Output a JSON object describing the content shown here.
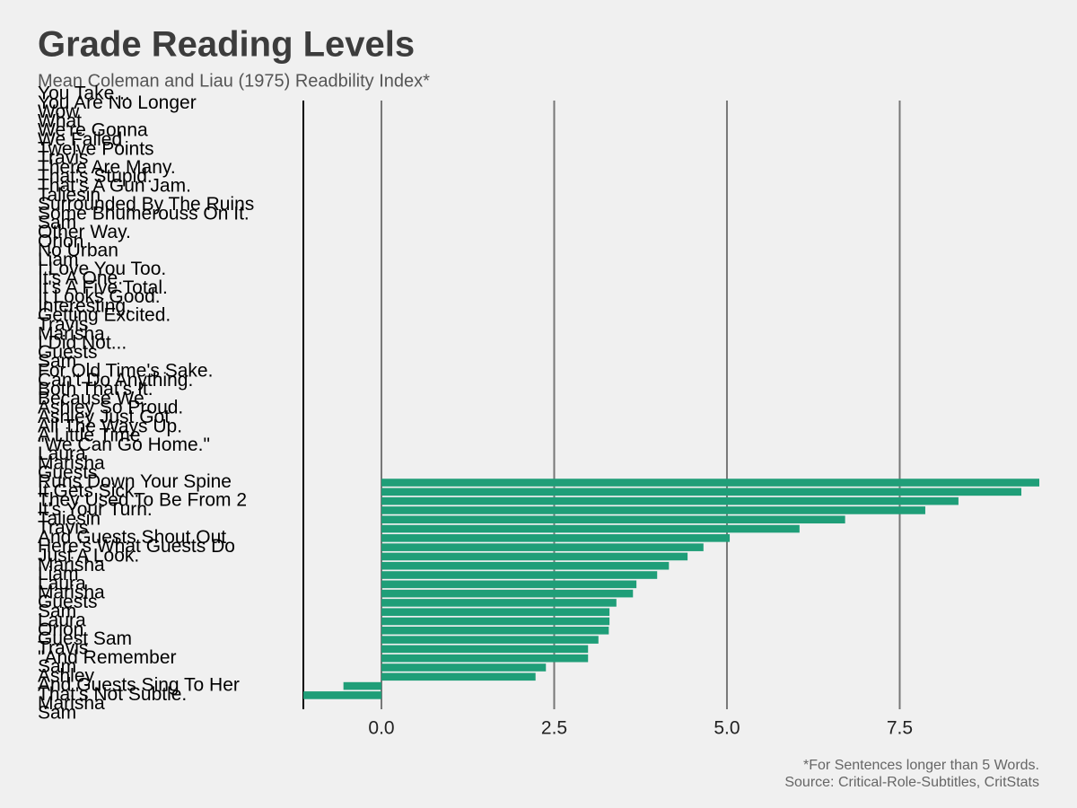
{
  "chart_data": {
    "type": "barh",
    "title": "Grade Reading Levels",
    "subtitle": "Mean Coleman and Liau (1975) Readbility Index*",
    "footnote": [
      "*For Sentences longer than 5 Words.",
      "Source: Critical-Role-Subtitles, CritStats"
    ],
    "color": "#1f9e78",
    "grid": true,
    "xlim": [
      -1.13,
      9.52
    ],
    "xticks": [
      {
        "value": 0,
        "label": "0.0"
      },
      2.5,
      {
        "value": 5,
        "label": "5.0"
      },
      7.5
    ],
    "categories": [
      "You Take...",
      "You Are No Longer",
      "Wow",
      "What",
      "We're Gonna",
      "We Failed",
      "Twelve Points",
      "Travis",
      "There Are Many.",
      "That's Stupid.",
      "That's A Gun Jam.",
      "Taliesin",
      "Surrounded By The Ruins",
      "Some Bhumerouss On It.",
      "Sam",
      "Other Way.",
      "Orion",
      "No Urban",
      "Liam",
      "I Love You Too.",
      "It's A One.",
      "It's A Five Total.",
      "It Looks Good.",
      "Interesting.",
      "Getting Excited.",
      "Travis",
      "Marisha",
      "I Did Not...",
      "Guests",
      "Sam",
      "For Old Time's Sake.",
      "Can't Do Anything.",
      "Both That's It.",
      "Because We",
      "Ashley So Proud.",
      "Ashley Just Got",
      "All The Ways Up.",
      "A Little Time",
      "\"We Can Go Home.\"",
      "Laura",
      "Marisha",
      "Guests",
      "Runs Down Your Spine",
      "It Gets Sick.",
      "They Used To Be From 2",
      "It's Your Turn.",
      "Taliesin",
      "Travis",
      "And Guests Shout Out",
      "Here's What Guests Do",
      "Just A Look.",
      "Marisha",
      "Liam",
      "Laura",
      "Marisha",
      "Guests",
      "Sam",
      "Laura",
      "Orion",
      "Guest Sam",
      "Travis",
      "\"And Remember",
      "Sam",
      "Ashley",
      "And Guests Sing To Her",
      "That's Not Subtle.",
      "Marisha",
      "Sam"
    ],
    "values": [
      null,
      null,
      null,
      null,
      null,
      null,
      null,
      null,
      null,
      null,
      null,
      null,
      null,
      null,
      null,
      null,
      null,
      null,
      null,
      null,
      null,
      null,
      null,
      null,
      null,
      null,
      null,
      null,
      null,
      null,
      null,
      null,
      null,
      null,
      null,
      null,
      null,
      null,
      null,
      null,
      null,
      null,
      9.52,
      9.26,
      8.35,
      7.87,
      6.71,
      6.05,
      5.04,
      4.66,
      4.43,
      4.16,
      3.99,
      3.69,
      3.64,
      3.4,
      3.3,
      3.3,
      3.29,
      3.14,
      2.99,
      2.99,
      2.38,
      2.23,
      -0.55,
      -1.13,
      null,
      null
    ]
  }
}
